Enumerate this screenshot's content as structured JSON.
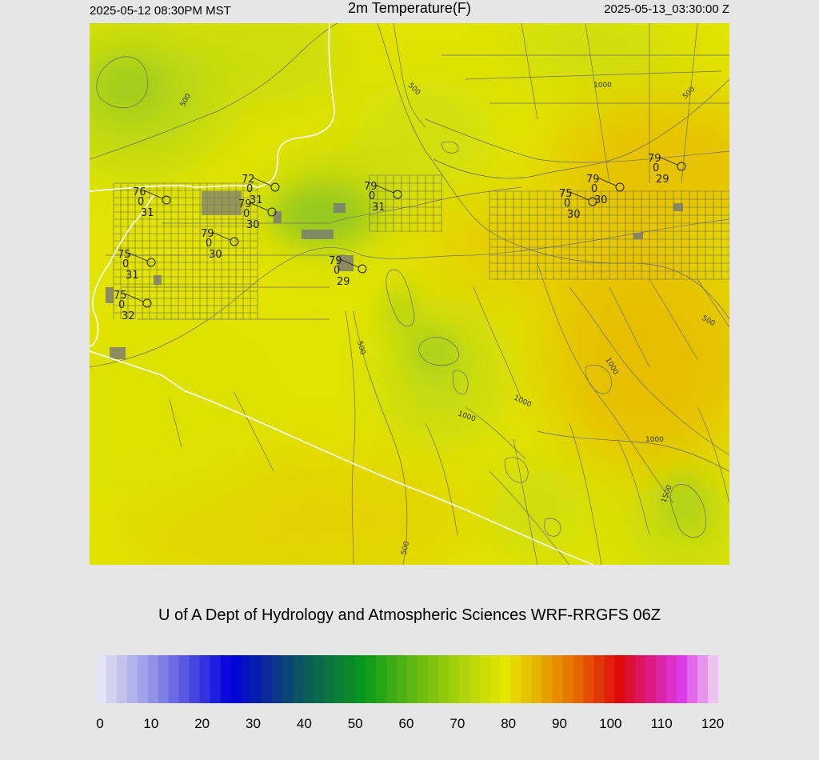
{
  "header": {
    "local_time": "2025-05-12 08:30PM MST",
    "title": "2m Temperature(F)",
    "valid_time": "2025-05-13_03:30:00 Z"
  },
  "credit": "U of A Dept of Hydrology and Atmospheric Sciences WRF-RRGFS 06Z",
  "colorbar": {
    "ticks": [
      "0",
      "10",
      "20",
      "30",
      "40",
      "50",
      "60",
      "70",
      "80",
      "90",
      "100",
      "110",
      "120"
    ],
    "stops": [
      {
        "value": 0,
        "color": "#ececf6"
      },
      {
        "value": 10,
        "color": "#9a9ae6"
      },
      {
        "value": 20,
        "color": "#3c3ce0"
      },
      {
        "value": 26,
        "color": "#0000dc"
      },
      {
        "value": 33,
        "color": "#0a2a9a"
      },
      {
        "value": 40,
        "color": "#0a5a5a"
      },
      {
        "value": 46,
        "color": "#0a7a3a"
      },
      {
        "value": 52,
        "color": "#0a9a1a"
      },
      {
        "value": 60,
        "color": "#58b412"
      },
      {
        "value": 70,
        "color": "#a8d20a"
      },
      {
        "value": 79,
        "color": "#e6e600"
      },
      {
        "value": 85,
        "color": "#e6b400"
      },
      {
        "value": 92,
        "color": "#e67000"
      },
      {
        "value": 101,
        "color": "#dc0a0a"
      },
      {
        "value": 108,
        "color": "#dc1e9a"
      },
      {
        "value": 113,
        "color": "#dc3ce6"
      },
      {
        "value": 120,
        "color": "#f0d8f0"
      }
    ]
  },
  "map": {
    "stations": [
      {
        "temp": "76",
        "dew": "31",
        "wind": "0"
      },
      {
        "temp": "72",
        "dew": "31",
        "wind": "0"
      },
      {
        "temp": "79",
        "dew": "30",
        "wind": "0"
      },
      {
        "temp": "79",
        "dew": "30",
        "wind": "0"
      },
      {
        "temp": "75",
        "dew": "31",
        "wind": "0"
      },
      {
        "temp": "75",
        "dew": "32",
        "wind": "0"
      },
      {
        "temp": "79",
        "dew": "29",
        "wind": "0"
      },
      {
        "temp": "79",
        "dew": "31",
        "wind": "0"
      },
      {
        "temp": "75",
        "dew": "30",
        "wind": "0"
      },
      {
        "temp": "79",
        "dew": "30",
        "wind": "0"
      },
      {
        "temp": "79",
        "dew": "29",
        "wind": "0"
      }
    ],
    "contour_labels": [
      "500",
      "500",
      "500",
      "1000",
      "1000",
      "1000",
      "1000",
      "1000",
      "1500",
      "500",
      "500",
      "500"
    ]
  }
}
